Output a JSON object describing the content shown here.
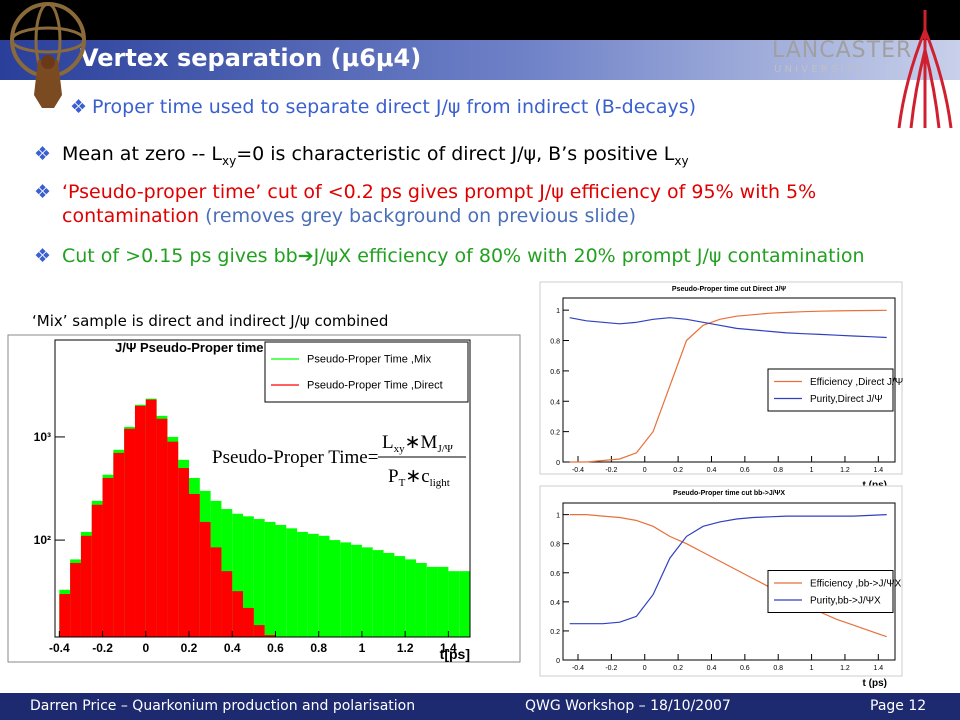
{
  "header": {
    "title": "Vertex separation (μ6μ4)",
    "logo_text": "LANCASTER",
    "logo_sub": "U N I V E R S I T Y"
  },
  "subtitle": "Proper time used to separate direct J/ψ from indirect (B-decays)",
  "bullets": [
    {
      "color": "#000000",
      "parts": [
        {
          "text": "Mean at zero -- L"
        },
        {
          "text": "xy",
          "style": "sub"
        },
        {
          "text": "=0 is characteristic of direct J/ψ, B’s positive L"
        },
        {
          "text": "xy",
          "style": "sub"
        }
      ]
    },
    {
      "color": "#e00000",
      "parts": [
        {
          "text": "‘Pseudo-proper time’ cut of <0.2 ps gives prompt J/ψ efficiency of 95% with 5% contamination "
        },
        {
          "text": "(removes grey background on previous slide)",
          "color": "#4a6fb8"
        }
      ]
    },
    {
      "color": "#22a020",
      "parts": [
        {
          "text": "Cut of >0.15 ps gives bb➔J/ψX efficiency of 80% with 20% prompt J/ψ contamination"
        }
      ]
    }
  ],
  "caption": "‘Mix’ sample is direct and indirect J/ψ combined",
  "charts": [
    {
      "type": "hist",
      "title": "J/Ψ Pseudo-Proper time",
      "xlabel": "t[ps]",
      "log_y": true,
      "legend": "top-right",
      "xlim": [
        -0.42,
        1.5
      ],
      "xticks": [
        -0.4,
        -0.2,
        0,
        0.2,
        0.4,
        0.6,
        0.8,
        1,
        1.2,
        1.4
      ],
      "ylim": [
        11.5,
        8700
      ],
      "yticks": [
        {
          "value": 100,
          "label": "10²"
        },
        {
          "value": 1000,
          "label": "10³"
        }
      ],
      "bins": [
        -0.4,
        -0.35,
        -0.3,
        -0.25,
        -0.2,
        -0.15,
        -0.1,
        -0.05,
        0,
        0.05,
        0.1,
        0.15,
        0.2,
        0.25,
        0.3,
        0.35,
        0.4,
        0.45,
        0.5,
        0.55,
        0.6,
        0.65,
        0.7,
        0.75,
        0.8,
        0.85,
        0.9,
        0.95,
        1,
        1.05,
        1.1,
        1.15,
        1.2,
        1.25,
        1.3,
        1.35,
        1.4,
        1.45,
        1.5
      ],
      "series": [
        {
          "name": "Pseudo-Proper Time ,Mix",
          "color": "#00ff00",
          "values": [
            33,
            65,
            120,
            240,
            430,
            750,
            1250,
            2050,
            2350,
            1600,
            1000,
            600,
            400,
            300,
            240,
            200,
            180,
            170,
            160,
            150,
            140,
            130,
            120,
            115,
            110,
            100,
            95,
            90,
            85,
            80,
            75,
            70,
            65,
            60,
            55,
            55,
            50,
            50
          ]
        },
        {
          "name": "Pseudo-Proper Time ,Direct",
          "color": "#ff0000",
          "values": [
            30,
            60,
            110,
            220,
            400,
            700,
            1200,
            2000,
            2300,
            1500,
            900,
            500,
            280,
            150,
            85,
            50,
            32,
            22,
            15,
            12,
            0,
            0,
            0,
            0,
            0,
            0,
            0,
            0,
            0,
            0,
            0,
            0,
            0,
            0,
            0,
            0,
            0,
            0
          ]
        }
      ],
      "formula": {
        "lhs": "Pseudo-Proper Time=",
        "numerator": [
          {
            "text": "L"
          },
          {
            "text": "xy",
            "style": "sub"
          },
          {
            "text": "∗M"
          },
          {
            "text": "J/Ψ",
            "style": "sub"
          }
        ],
        "denominator": [
          {
            "text": "P"
          },
          {
            "text": "T",
            "style": "sub"
          },
          {
            "text": "∗c"
          },
          {
            "text": "light",
            "style": "sub"
          }
        ]
      }
    },
    {
      "type": "line",
      "title": "Pseudo-Proper time cut Direct J/Ψ",
      "xlabel": "t (ps)",
      "legend": "center-right",
      "xlim": [
        -0.49,
        1.5
      ],
      "xticks": [
        -0.4,
        -0.2,
        0,
        0.2,
        0.4,
        0.6,
        0.8,
        1,
        1.2,
        1.4
      ],
      "ylim": [
        0,
        1.08
      ],
      "yticks": [
        0,
        0.2,
        0.4,
        0.6,
        0.8,
        1
      ],
      "x": [
        -0.45,
        -0.35,
        -0.25,
        -0.15,
        -0.05,
        0.05,
        0.15,
        0.25,
        0.35,
        0.45,
        0.55,
        0.65,
        0.75,
        0.85,
        0.95,
        1.05,
        1.15,
        1.25,
        1.35,
        1.45
      ],
      "series": [
        {
          "name": "Efficiency ,Direct J/Ψ",
          "color": "#e8703a",
          "values": [
            0,
            0,
            0.01,
            0.02,
            0.06,
            0.2,
            0.5,
            0.8,
            0.9,
            0.94,
            0.96,
            0.97,
            0.98,
            0.985,
            0.99,
            0.993,
            0.995,
            0.997,
            0.998,
            0.999
          ]
        },
        {
          "name": "Purity,Direct J/Ψ",
          "color": "#3040c0",
          "values": [
            0.95,
            0.93,
            0.92,
            0.91,
            0.92,
            0.94,
            0.95,
            0.94,
            0.92,
            0.9,
            0.88,
            0.87,
            0.86,
            0.85,
            0.845,
            0.84,
            0.835,
            0.83,
            0.825,
            0.82
          ]
        }
      ]
    },
    {
      "type": "line",
      "title": "Pseudo-Proper time cut bb->J/ΨX",
      "xlabel": "t (ps)",
      "legend": "center-right",
      "xlim": [
        -0.49,
        1.5
      ],
      "xticks": [
        -0.4,
        -0.2,
        0,
        0.2,
        0.4,
        0.6,
        0.8,
        1,
        1.2,
        1.4
      ],
      "ylim": [
        0,
        1.08
      ],
      "yticks": [
        0,
        0.2,
        0.4,
        0.6,
        0.8,
        1
      ],
      "x": [
        -0.45,
        -0.35,
        -0.25,
        -0.15,
        -0.05,
        0.05,
        0.15,
        0.25,
        0.35,
        0.45,
        0.55,
        0.65,
        0.75,
        0.85,
        0.95,
        1.05,
        1.15,
        1.25,
        1.35,
        1.45
      ],
      "series": [
        {
          "name": "Efficiency ,bb->J/ΨX",
          "color": "#e8703a",
          "values": [
            1,
            1,
            0.99,
            0.98,
            0.96,
            0.92,
            0.85,
            0.8,
            0.74,
            0.68,
            0.62,
            0.56,
            0.5,
            0.44,
            0.38,
            0.33,
            0.28,
            0.24,
            0.2,
            0.16
          ]
        },
        {
          "name": "Purity,bb->J/ΨX",
          "color": "#3040c0",
          "values": [
            0.25,
            0.25,
            0.25,
            0.26,
            0.3,
            0.45,
            0.7,
            0.85,
            0.92,
            0.95,
            0.97,
            0.98,
            0.985,
            0.99,
            0.99,
            0.99,
            0.99,
            0.99,
            0.995,
            1
          ]
        }
      ]
    }
  ],
  "footer": {
    "left": "Darren Price – Quarkonium production and polarisation",
    "center": "QWG Workshop – 18/10/2007",
    "right": "Page 12"
  }
}
